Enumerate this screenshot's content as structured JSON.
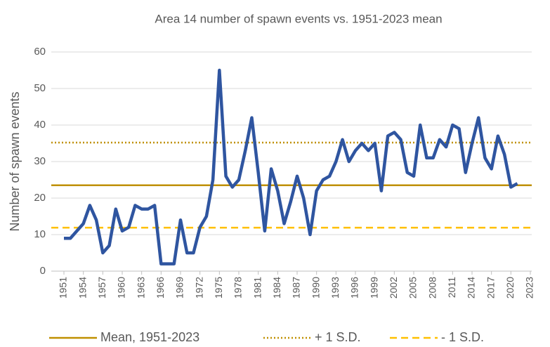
{
  "chart_data": {
    "type": "line",
    "title": "Area 14 number of spawn events vs. 1951-2023 mean",
    "y_label": "Number of spawn events",
    "x": [
      1951,
      1952,
      1953,
      1954,
      1955,
      1956,
      1957,
      1958,
      1959,
      1960,
      1961,
      1962,
      1963,
      1964,
      1965,
      1966,
      1967,
      1968,
      1969,
      1970,
      1971,
      1972,
      1973,
      1974,
      1975,
      1976,
      1977,
      1978,
      1979,
      1980,
      1981,
      1982,
      1983,
      1984,
      1985,
      1986,
      1987,
      1988,
      1989,
      1990,
      1991,
      1992,
      1993,
      1994,
      1995,
      1996,
      1997,
      1998,
      1999,
      2000,
      2001,
      2002,
      2003,
      2004,
      2005,
      2006,
      2007,
      2008,
      2009,
      2010,
      2011,
      2012,
      2013,
      2014,
      2015,
      2016,
      2017,
      2018,
      2019,
      2020,
      2021
    ],
    "series": [
      {
        "name": "Spawn events",
        "color": "#2f55a0",
        "values": [
          9,
          9,
          11,
          13,
          18,
          14,
          5,
          7,
          17,
          11,
          12,
          18,
          17,
          17,
          18,
          2,
          2,
          2,
          14,
          5,
          5,
          12,
          15,
          25,
          55,
          26,
          23,
          25,
          33,
          42,
          27,
          11,
          28,
          22,
          13,
          19,
          26,
          20,
          10,
          22,
          25,
          26,
          30,
          36,
          30,
          33,
          35,
          33,
          35,
          22,
          37,
          38,
          36,
          27,
          26,
          40,
          31,
          31,
          36,
          34,
          40,
          39,
          27,
          35,
          42,
          31,
          28,
          37,
          32,
          23,
          24
        ]
      }
    ],
    "reference_lines": [
      {
        "name": "Mean, 1951-2023",
        "value": 23.5,
        "color": "#bf9000",
        "style": "solid"
      },
      {
        "name": "+ 1 S.D.",
        "value": 35.2,
        "color": "#bf9000",
        "style": "dotted"
      },
      {
        "name": "- 1 S.D.",
        "value": 11.9,
        "color": "#ffc000",
        "style": "dashed"
      }
    ],
    "xlim": [
      1951,
      2023
    ],
    "xticks": [
      1951,
      1954,
      1957,
      1960,
      1963,
      1966,
      1969,
      1972,
      1975,
      1978,
      1981,
      1984,
      1987,
      1990,
      1993,
      1996,
      1999,
      2002,
      2005,
      2008,
      2011,
      2014,
      2017,
      2020,
      2023
    ],
    "ylim": [
      0,
      60
    ],
    "yticks": [
      0,
      10,
      20,
      30,
      40,
      50,
      60
    ],
    "grid": true,
    "legend": "bottom"
  }
}
